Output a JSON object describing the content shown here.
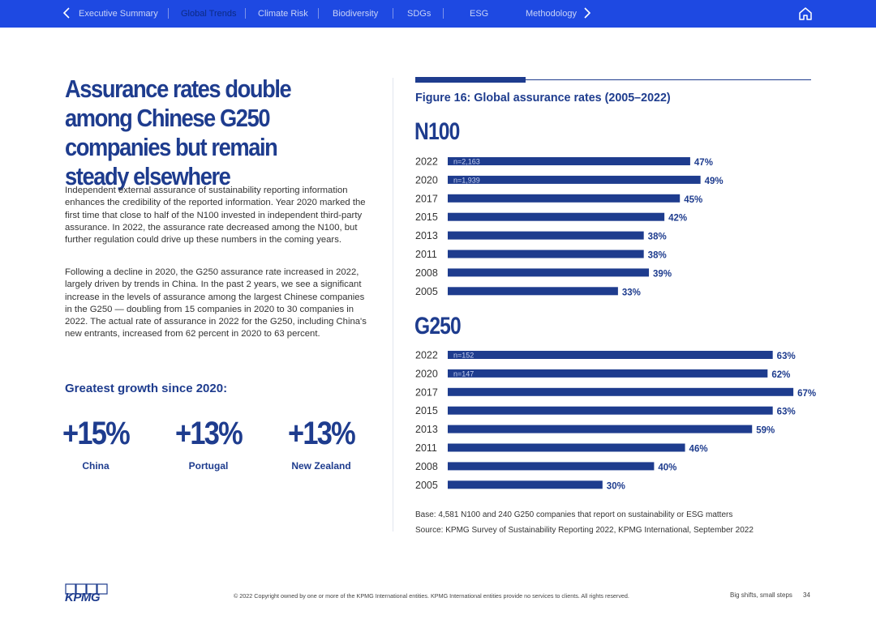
{
  "nav": {
    "prev_icon": "chevron-left-icon",
    "next_icon": "chevron-right-icon",
    "home_icon": "home-icon",
    "items": [
      {
        "label": "Executive Summary",
        "active": false
      },
      {
        "label": "Global Trends",
        "active": true
      },
      {
        "label": "Climate Risk",
        "active": false
      },
      {
        "label": "Biodiversity",
        "active": false
      },
      {
        "label": "SDGs",
        "active": false
      },
      {
        "label": "ESG",
        "active": false
      },
      {
        "label": "Methodology",
        "active": false
      }
    ]
  },
  "left": {
    "headline": "Assurance rates double among Chinese G250 companies but remain steady elsewhere",
    "paragraph1": "Independent external assurance of sustainability reporting information enhances the credibility of the reported information. Year 2020 marked the first time that close to half of the N100 invested in independent third-party assurance. In 2022, the assurance rate decreased among the N100, but further regulation could drive up these numbers in the coming years.",
    "paragraph2": "Following a decline in 2020, the G250 assurance rate increased in 2022, largely driven by trends in China. In the past 2 years, we see a significant increase in the levels of assurance among the largest Chinese companies in the G250 — doubling from 15 companies in 2020 to 30 companies in 2022. The actual rate of assurance in 2022 for the G250, including China's new entrants, increased from 62 percent in 2020 to 63 percent.",
    "growth_title": "Greatest growth since 2020:",
    "stats": [
      {
        "value": "+15%",
        "label": "China"
      },
      {
        "value": "+13%",
        "label": "Portugal"
      },
      {
        "value": "+13%",
        "label": "New Zealand"
      }
    ]
  },
  "figure": {
    "title": "Figure 16: Global assurance rates (2005–2022)",
    "base_note": "Base: 4,581 N100 and 240 G250 companies that report on sustainability or ESG matters",
    "source_note": "Source: KPMG Survey of Sustainability Reporting 2022, KPMG International, September 2022"
  },
  "chart_data": [
    {
      "type": "bar",
      "orientation": "horizontal",
      "title": "N100",
      "categories": [
        "2022",
        "2020",
        "2017",
        "2015",
        "2013",
        "2011",
        "2008",
        "2005"
      ],
      "values": [
        47,
        49,
        45,
        42,
        38,
        38,
        39,
        33
      ],
      "value_labels": [
        "47%",
        "49%",
        "45%",
        "42%",
        "38%",
        "38%",
        "39%",
        "33%"
      ],
      "bar_annotations": [
        "n=2,163",
        "n=1,939",
        "",
        "",
        "",
        "",
        "",
        ""
      ],
      "unit": "%",
      "color": "#1e3c8e"
    },
    {
      "type": "bar",
      "orientation": "horizontal",
      "title": "G250",
      "categories": [
        "2022",
        "2020",
        "2017",
        "2015",
        "2013",
        "2011",
        "2008",
        "2005"
      ],
      "values": [
        63,
        62,
        67,
        63,
        59,
        46,
        40,
        30
      ],
      "value_labels": [
        "63%",
        "62%",
        "67%",
        "63%",
        "59%",
        "46%",
        "40%",
        "30%"
      ],
      "bar_annotations": [
        "n=152",
        "n=147",
        "",
        "",
        "",
        "",
        "",
        ""
      ],
      "unit": "%",
      "color": "#1e3c8e"
    }
  ],
  "footer": {
    "logo_text": "KPMG",
    "copyright": "© 2022 Copyright owned by one or more of the KPMG International entities. KPMG International entities provide no services to clients. All rights reserved.",
    "publication": "Big shifts, small steps",
    "page": "34"
  }
}
